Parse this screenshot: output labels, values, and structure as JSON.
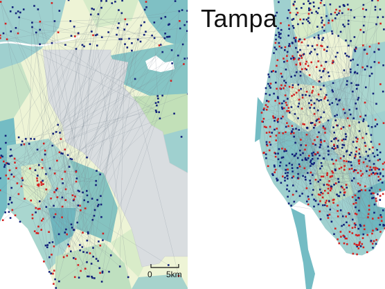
{
  "map": {
    "panels": [
      {
        "id": "left-panel",
        "title": ""
      },
      {
        "id": "right-panel",
        "title": "Tampa"
      }
    ],
    "scale_bar": {
      "start_label": "0",
      "end_label": "5km"
    },
    "legend_colors": {
      "point_red": "#d42020",
      "point_blue": "#12217a",
      "water_teal": "#74bcc4",
      "land_light": "#eef4d6",
      "land_mid": "#c7e3c6",
      "excluded_gray": "#d9dde0",
      "network_line": "#7c8a93"
    }
  }
}
